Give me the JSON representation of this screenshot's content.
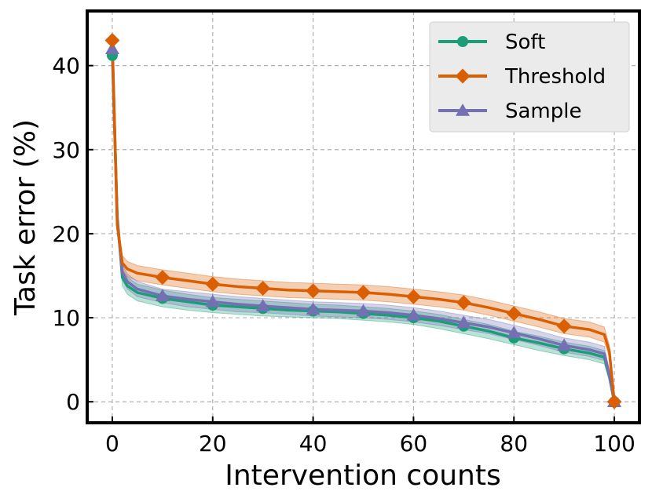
{
  "chart_data": {
    "type": "line",
    "title": "",
    "xlabel": "Intervention counts",
    "ylabel": "Task error (%)",
    "xlim": [
      -5,
      105
    ],
    "ylim": [
      -2.5,
      46.5
    ],
    "xticks": [
      0,
      20,
      40,
      60,
      80,
      100
    ],
    "yticks": [
      0,
      10,
      20,
      30,
      40
    ],
    "grid": true,
    "legend_position": "top-right",
    "series": [
      {
        "name": "Soft",
        "color": "#1b9e77",
        "marker": "circle",
        "x": [
          0,
          1,
          2,
          3,
          5,
          10,
          15,
          20,
          25,
          30,
          35,
          40,
          45,
          50,
          55,
          60,
          65,
          70,
          75,
          80,
          85,
          90,
          95,
          98,
          99,
          100
        ],
        "values": [
          41.2,
          22.0,
          14.8,
          13.8,
          13.0,
          12.3,
          11.9,
          11.5,
          11.3,
          11.1,
          10.9,
          10.8,
          10.7,
          10.5,
          10.3,
          10.0,
          9.6,
          9.0,
          8.4,
          7.6,
          7.0,
          6.3,
          5.8,
          5.3,
          3.0,
          0.0
        ],
        "band_lower": [
          40.8,
          21.0,
          13.8,
          12.8,
          12.0,
          11.3,
          10.9,
          10.6,
          10.4,
          10.2,
          10.1,
          10.0,
          9.9,
          9.7,
          9.5,
          9.2,
          8.7,
          8.1,
          7.5,
          6.8,
          6.1,
          5.5,
          5.0,
          4.5,
          2.5,
          0.0
        ],
        "band_upper": [
          41.6,
          23.0,
          15.8,
          14.8,
          14.0,
          13.3,
          12.8,
          12.4,
          12.2,
          12.0,
          11.8,
          11.6,
          11.5,
          11.3,
          11.1,
          10.8,
          10.4,
          9.8,
          9.2,
          8.4,
          7.8,
          7.1,
          6.6,
          6.1,
          3.5,
          0.0
        ],
        "marker_x": [
          0,
          10,
          20,
          30,
          40,
          50,
          60,
          70,
          80,
          90,
          100
        ]
      },
      {
        "name": "Threshold",
        "color": "#d95f02",
        "marker": "diamond",
        "x": [
          0,
          1,
          2,
          3,
          5,
          10,
          15,
          20,
          25,
          30,
          35,
          40,
          45,
          50,
          55,
          60,
          65,
          70,
          75,
          80,
          85,
          90,
          95,
          98,
          99,
          100
        ],
        "values": [
          43.0,
          21.0,
          16.5,
          15.8,
          15.3,
          14.8,
          14.4,
          14.0,
          13.7,
          13.5,
          13.3,
          13.2,
          13.1,
          13.0,
          12.8,
          12.5,
          12.2,
          11.8,
          11.2,
          10.5,
          9.8,
          9.0,
          8.6,
          8.0,
          6.0,
          0.0
        ],
        "band_lower": [
          42.6,
          20.0,
          15.6,
          14.9,
          14.4,
          13.9,
          13.5,
          13.1,
          12.8,
          12.6,
          12.4,
          12.3,
          12.2,
          12.1,
          11.9,
          11.6,
          11.3,
          10.9,
          10.3,
          9.6,
          8.9,
          8.1,
          7.7,
          7.1,
          5.3,
          0.0
        ],
        "band_upper": [
          43.4,
          22.0,
          17.4,
          16.7,
          16.2,
          15.7,
          15.3,
          14.9,
          14.6,
          14.4,
          14.2,
          14.1,
          14.0,
          13.9,
          13.7,
          13.4,
          13.1,
          12.7,
          12.1,
          11.4,
          10.7,
          9.9,
          9.5,
          8.9,
          6.7,
          0.0
        ],
        "marker_x": [
          0,
          10,
          20,
          30,
          40,
          50,
          60,
          70,
          80,
          90,
          100
        ]
      },
      {
        "name": "Sample",
        "color": "#7570b3",
        "marker": "triangle",
        "x": [
          0,
          1,
          2,
          3,
          5,
          10,
          15,
          20,
          25,
          30,
          35,
          40,
          45,
          50,
          55,
          60,
          65,
          70,
          75,
          80,
          85,
          90,
          95,
          98,
          99,
          100
        ],
        "values": [
          42.0,
          21.5,
          15.4,
          14.3,
          13.4,
          12.6,
          12.2,
          11.9,
          11.6,
          11.4,
          11.2,
          11.0,
          10.9,
          10.8,
          10.6,
          10.3,
          9.9,
          9.4,
          8.9,
          8.2,
          7.5,
          6.7,
          6.2,
          5.7,
          3.2,
          0.0
        ],
        "band_lower": [
          41.6,
          20.5,
          14.5,
          13.4,
          12.5,
          11.8,
          11.3,
          11.0,
          10.7,
          10.6,
          10.4,
          10.2,
          10.1,
          10.0,
          9.8,
          9.5,
          9.1,
          8.6,
          8.1,
          7.4,
          6.7,
          5.9,
          5.4,
          4.9,
          2.7,
          0.0
        ],
        "band_upper": [
          42.4,
          22.5,
          16.3,
          15.2,
          14.3,
          13.4,
          13.1,
          12.8,
          12.5,
          12.3,
          12.1,
          11.9,
          11.8,
          11.7,
          11.5,
          11.2,
          10.8,
          10.3,
          9.8,
          9.1,
          8.4,
          7.6,
          7.1,
          6.6,
          3.8,
          0.0
        ],
        "marker_x": [
          0,
          10,
          20,
          30,
          40,
          50,
          60,
          70,
          80,
          90,
          100
        ]
      }
    ]
  }
}
